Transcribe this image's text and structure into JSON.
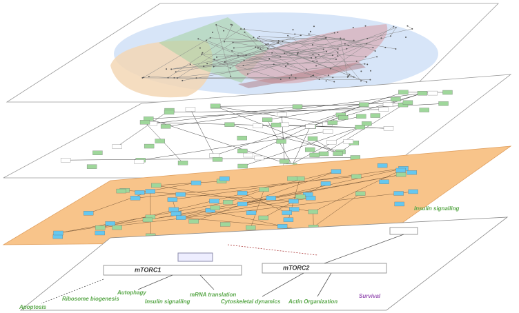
{
  "bottom_layer": {
    "complexes": [
      "mTORC1",
      "mTORC2"
    ],
    "processes": [
      "Insulin signalling",
      "Autophagy",
      "Insulin signalling",
      "mRNA translation",
      "Cytoskeletal dynamics",
      "Actin Organization",
      "Survival",
      "Ribosome biogenesis",
      "Apoptosis"
    ]
  }
}
